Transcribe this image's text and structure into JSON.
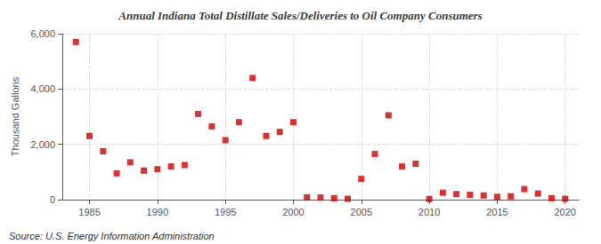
{
  "chart_data": {
    "type": "scatter",
    "title": "Annual Indiana Total Distillate Sales/Deliveries to Oil Company Consumers",
    "ylabel": "Thousand Gallons",
    "annotations": [
      "Source: U.S. Energy Information Administration"
    ],
    "x": [
      1984,
      1985,
      1986,
      1987,
      1988,
      1989,
      1990,
      1991,
      1992,
      1993,
      1994,
      1995,
      1996,
      1997,
      1998,
      1999,
      2000,
      2001,
      2002,
      2003,
      2004,
      2005,
      2006,
      2007,
      2008,
      2009,
      2010,
      2011,
      2012,
      2013,
      2014,
      2015,
      2016,
      2017,
      2018,
      2019,
      2020
    ],
    "values": [
      5700,
      2300,
      1750,
      950,
      1350,
      1050,
      1100,
      1200,
      1250,
      3100,
      2650,
      2150,
      2800,
      4400,
      2300,
      2450,
      2800,
      80,
      75,
      50,
      30,
      750,
      1650,
      3050,
      1200,
      1300,
      20,
      250,
      200,
      175,
      150,
      100,
      120,
      380,
      220,
      50,
      30
    ],
    "color": "#cc0000",
    "marker": "square",
    "xlim": [
      1983,
      2021
    ],
    "xticks": [
      1985,
      1990,
      1995,
      2000,
      2005,
      2010,
      2015,
      2020
    ],
    "ylim": [
      0,
      6000
    ],
    "yticks": [
      0,
      {
        "value": 2000,
        "label": "2,000"
      },
      {
        "value": 4000,
        "label": "4,000"
      },
      {
        "value": 6000,
        "label": "6,000"
      }
    ],
    "grid": true
  }
}
